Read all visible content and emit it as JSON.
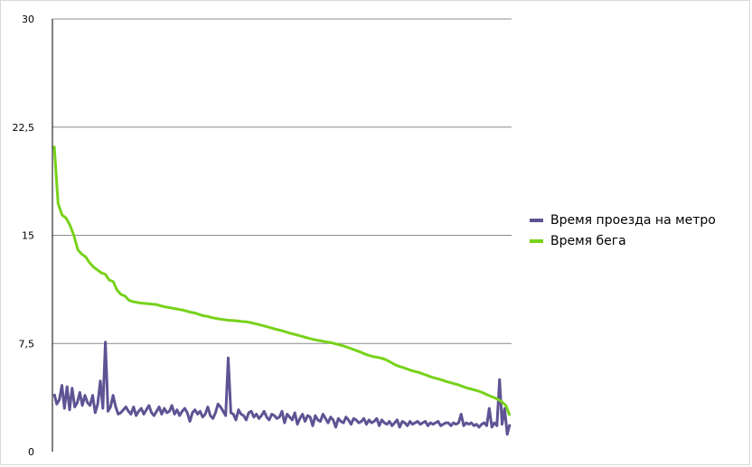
{
  "chart_data": {
    "type": "line",
    "title": "",
    "xlabel": "",
    "ylabel": "",
    "ylim": [
      0,
      30
    ],
    "yticks": [
      0,
      7.5,
      15,
      22.5,
      30
    ],
    "ytick_labels": [
      "0",
      "7,5",
      "15",
      "22,5",
      "30"
    ],
    "grid": true,
    "legend_position": "right",
    "series": [
      {
        "name": "Время проезда на метро",
        "color": "#5f5394",
        "values": [
          4.0,
          3.3,
          3.6,
          4.6,
          3.0,
          4.5,
          2.9,
          4.4,
          3.1,
          3.4,
          4.1,
          3.2,
          3.9,
          3.4,
          3.2,
          3.9,
          2.7,
          3.3,
          4.9,
          3.0,
          7.6,
          2.8,
          3.1,
          3.9,
          3.1,
          2.6,
          2.7,
          2.9,
          3.1,
          2.8,
          2.6,
          3.1,
          2.5,
          2.8,
          3.0,
          2.6,
          2.9,
          3.2,
          2.7,
          2.5,
          2.8,
          3.1,
          2.6,
          3.0,
          2.7,
          2.8,
          3.2,
          2.6,
          2.9,
          2.5,
          2.8,
          3.0,
          2.7,
          2.1,
          2.7,
          2.9,
          2.6,
          2.8,
          2.4,
          2.6,
          3.1,
          2.5,
          2.3,
          2.7,
          3.3,
          3.1,
          2.8,
          2.5,
          6.5,
          2.7,
          2.6,
          2.2,
          2.9,
          2.6,
          2.5,
          2.2,
          2.7,
          2.8,
          2.4,
          2.6,
          2.3,
          2.5,
          2.8,
          2.4,
          2.2,
          2.6,
          2.5,
          2.3,
          2.4,
          2.8,
          2.0,
          2.6,
          2.4,
          2.2,
          2.7,
          1.9,
          2.3,
          2.6,
          2.1,
          2.5,
          2.4,
          1.8,
          2.5,
          2.2,
          2.1,
          2.6,
          2.3,
          2.0,
          2.4,
          2.2,
          1.7,
          2.3,
          2.1,
          2.0,
          2.4,
          2.2,
          1.9,
          2.3,
          2.2,
          2.0,
          2.1,
          2.3,
          1.9,
          2.2,
          2.0,
          2.1,
          2.3,
          1.8,
          2.2,
          2.0,
          1.9,
          2.1,
          1.8,
          2.0,
          2.2,
          1.7,
          2.1,
          2.0,
          1.8,
          2.1,
          1.9,
          2.0,
          2.1,
          1.9,
          2.0,
          2.1,
          1.8,
          2.0,
          1.9,
          2.0,
          2.1,
          1.8,
          1.9,
          2.0,
          2.0,
          1.8,
          2.0,
          1.9,
          2.0,
          2.6,
          1.8,
          2.0,
          1.9,
          2.0,
          1.8,
          1.9,
          1.7,
          1.9,
          2.0,
          1.8,
          3.0,
          1.7,
          2.0,
          1.8,
          5.0,
          1.9,
          3.0,
          1.2,
          1.9
        ]
      },
      {
        "name": "Время бега",
        "color": "#77d21a",
        "values": [
          21.2,
          17.2,
          16.4,
          16.2,
          15.7,
          15.0,
          14.0,
          13.7,
          13.5,
          13.1,
          12.8,
          12.6,
          12.4,
          12.3,
          11.9,
          11.8,
          11.2,
          10.9,
          10.8,
          10.5,
          10.4,
          10.35,
          10.3,
          10.28,
          10.25,
          10.22,
          10.2,
          10.12,
          10.05,
          10.0,
          9.95,
          9.9,
          9.85,
          9.8,
          9.72,
          9.65,
          9.6,
          9.5,
          9.42,
          9.38,
          9.3,
          9.25,
          9.2,
          9.16,
          9.12,
          9.1,
          9.08,
          9.05,
          9.02,
          9.0,
          8.95,
          8.88,
          8.82,
          8.75,
          8.68,
          8.6,
          8.52,
          8.45,
          8.38,
          8.3,
          8.22,
          8.15,
          8.08,
          8.0,
          7.92,
          7.85,
          7.78,
          7.72,
          7.68,
          7.62,
          7.58,
          7.52,
          7.45,
          7.38,
          7.3,
          7.2,
          7.1,
          7.0,
          6.9,
          6.78,
          6.68,
          6.6,
          6.55,
          6.5,
          6.42,
          6.3,
          6.15,
          6.0,
          5.9,
          5.82,
          5.72,
          5.62,
          5.55,
          5.48,
          5.38,
          5.28,
          5.18,
          5.1,
          5.02,
          4.94,
          4.85,
          4.78,
          4.7,
          4.62,
          4.52,
          4.42,
          4.35,
          4.28,
          4.2,
          4.1,
          3.98,
          3.85,
          3.75,
          3.62,
          3.45,
          3.2,
          2.5
        ]
      }
    ]
  }
}
